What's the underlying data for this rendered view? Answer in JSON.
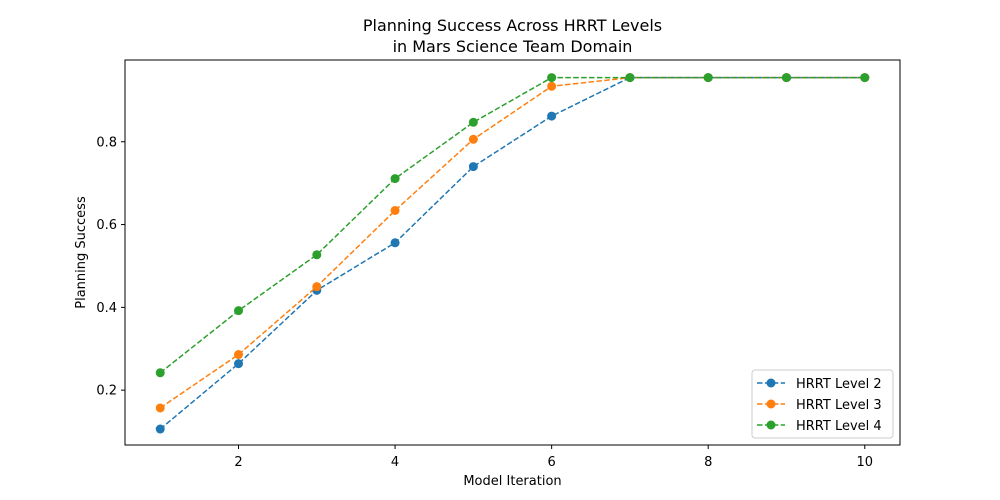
{
  "chart_data": {
    "type": "line",
    "title": [
      "Planning Success Across HRRT Levels",
      "in Mars Science Team Domain"
    ],
    "xlabel": "Model Iteration",
    "ylabel": "Planning Success",
    "x": [
      1,
      2,
      3,
      4,
      5,
      6,
      7,
      8,
      9,
      10
    ],
    "xlim": [
      0.55,
      10.45
    ],
    "ylim": [
      0.0675,
      0.9975
    ],
    "xticks": [
      2,
      4,
      6,
      8,
      10
    ],
    "yticks": [
      0.2,
      0.4,
      0.6,
      0.8
    ],
    "ytick_labels": [
      "0.2",
      "0.4",
      "0.6",
      "0.8"
    ],
    "grid": false,
    "legend_position": "lower-right",
    "line_style": "dashed",
    "marker": "circle",
    "series": [
      {
        "name": "HRRT Level 2",
        "color": "#1f77b4",
        "values": [
          0.106,
          0.264,
          0.441,
          0.556,
          0.74,
          0.862,
          0.955,
          0.955,
          0.955,
          0.955
        ]
      },
      {
        "name": "HRRT Level 3",
        "color": "#ff7f0e",
        "values": [
          0.157,
          0.286,
          0.45,
          0.634,
          0.806,
          0.934,
          0.955,
          0.955,
          0.955,
          0.955
        ]
      },
      {
        "name": "HRRT Level 4",
        "color": "#2ca02c",
        "values": [
          0.242,
          0.392,
          0.527,
          0.711,
          0.847,
          0.955,
          0.955,
          0.955,
          0.955,
          0.955
        ]
      }
    ]
  }
}
